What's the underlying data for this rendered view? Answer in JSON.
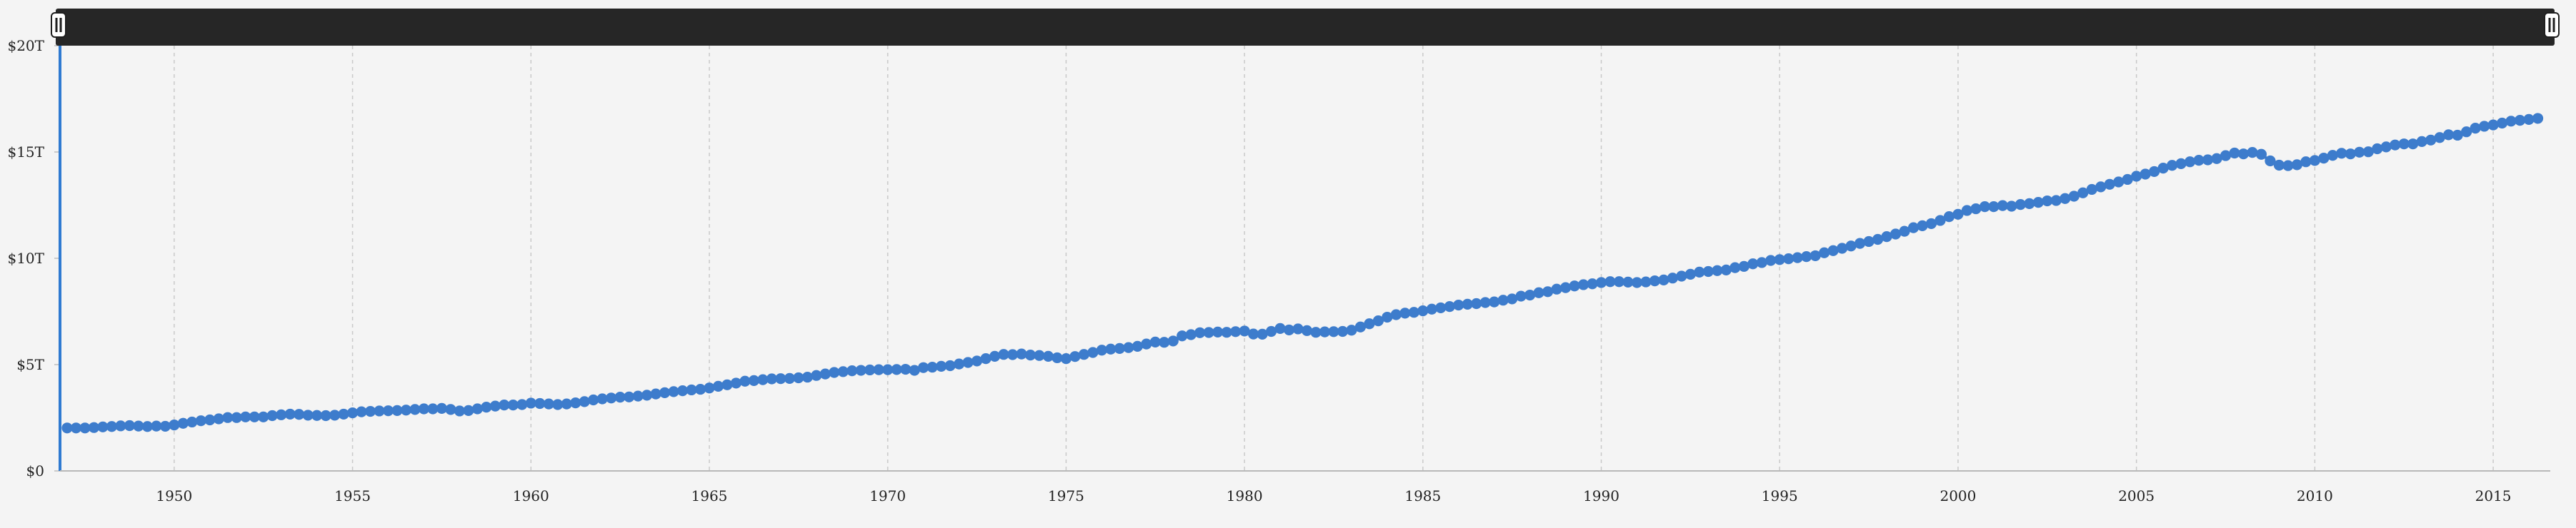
{
  "chart_data": {
    "type": "scatter",
    "title": "",
    "xlabel": "",
    "ylabel": "",
    "xlim": [
      1946.8,
      2016.6
    ],
    "ylim": [
      0,
      20
    ],
    "grid": true,
    "y_ticks": [
      {
        "value": 0,
        "label": "$0"
      },
      {
        "value": 5,
        "label": "$5T"
      },
      {
        "value": 10,
        "label": "$10T"
      },
      {
        "value": 15,
        "label": "$15T"
      },
      {
        "value": 20,
        "label": "$20T"
      }
    ],
    "x_ticks": [
      {
        "value": 1950,
        "label": "1950"
      },
      {
        "value": 1955,
        "label": "1955"
      },
      {
        "value": 1960,
        "label": "1960"
      },
      {
        "value": 1965,
        "label": "1965"
      },
      {
        "value": 1970,
        "label": "1970"
      },
      {
        "value": 1975,
        "label": "1975"
      },
      {
        "value": 1980,
        "label": "1980"
      },
      {
        "value": 1985,
        "label": "1985"
      },
      {
        "value": 1990,
        "label": "1990"
      },
      {
        "value": 1995,
        "label": "1995"
      },
      {
        "value": 2000,
        "label": "2000"
      },
      {
        "value": 2005,
        "label": "2005"
      },
      {
        "value": 2010,
        "label": "2010"
      },
      {
        "value": 2015,
        "label": "2015"
      }
    ],
    "brush": {
      "range": [
        1946.8,
        2016.6
      ]
    },
    "series": [
      {
        "color": "#3d7ccc",
        "x": [
          1947.0,
          1947.25,
          1947.5,
          1947.75,
          1948.0,
          1948.25,
          1948.5,
          1948.75,
          1949.0,
          1949.25,
          1949.5,
          1949.75,
          1950.0,
          1950.25,
          1950.5,
          1950.75,
          1951.0,
          1951.25,
          1951.5,
          1951.75,
          1952.0,
          1952.25,
          1952.5,
          1952.75,
          1953.0,
          1953.25,
          1953.5,
          1953.75,
          1954.0,
          1954.25,
          1954.5,
          1954.75,
          1955.0,
          1955.25,
          1955.5,
          1955.75,
          1956.0,
          1956.25,
          1956.5,
          1956.75,
          1957.0,
          1957.25,
          1957.5,
          1957.75,
          1958.0,
          1958.25,
          1958.5,
          1958.75,
          1959.0,
          1959.25,
          1959.5,
          1959.75,
          1960.0,
          1960.25,
          1960.5,
          1960.75,
          1961.0,
          1961.25,
          1961.5,
          1961.75,
          1962.0,
          1962.25,
          1962.5,
          1962.75,
          1963.0,
          1963.25,
          1963.5,
          1963.75,
          1964.0,
          1964.25,
          1964.5,
          1964.75,
          1965.0,
          1965.25,
          1965.5,
          1965.75,
          1966.0,
          1966.25,
          1966.5,
          1966.75,
          1967.0,
          1967.25,
          1967.5,
          1967.75,
          1968.0,
          1968.25,
          1968.5,
          1968.75,
          1969.0,
          1969.25,
          1969.5,
          1969.75,
          1970.0,
          1970.25,
          1970.5,
          1970.75,
          1971.0,
          1971.25,
          1971.5,
          1971.75,
          1972.0,
          1972.25,
          1972.5,
          1972.75,
          1973.0,
          1973.25,
          1973.5,
          1973.75,
          1974.0,
          1974.25,
          1974.5,
          1974.75,
          1975.0,
          1975.25,
          1975.5,
          1975.75,
          1976.0,
          1976.25,
          1976.5,
          1976.75,
          1977.0,
          1977.25,
          1977.5,
          1977.75,
          1978.0,
          1978.25,
          1978.5,
          1978.75,
          1979.0,
          1979.25,
          1979.5,
          1979.75,
          1980.0,
          1980.25,
          1980.5,
          1980.75,
          1981.0,
          1981.25,
          1981.5,
          1981.75,
          1982.0,
          1982.25,
          1982.5,
          1982.75,
          1983.0,
          1983.25,
          1983.5,
          1983.75,
          1984.0,
          1984.25,
          1984.5,
          1984.75,
          1985.0,
          1985.25,
          1985.5,
          1985.75,
          1986.0,
          1986.25,
          1986.5,
          1986.75,
          1987.0,
          1987.25,
          1987.5,
          1987.75,
          1988.0,
          1988.25,
          1988.5,
          1988.75,
          1989.0,
          1989.25,
          1989.5,
          1989.75,
          1990.0,
          1990.25,
          1990.5,
          1990.75,
          1991.0,
          1991.25,
          1991.5,
          1991.75,
          1992.0,
          1992.25,
          1992.5,
          1992.75,
          1993.0,
          1993.25,
          1993.5,
          1993.75,
          1994.0,
          1994.25,
          1994.5,
          1994.75,
          1995.0,
          1995.25,
          1995.5,
          1995.75,
          1996.0,
          1996.25,
          1996.5,
          1996.75,
          1997.0,
          1997.25,
          1997.5,
          1997.75,
          1998.0,
          1998.25,
          1998.5,
          1998.75,
          1999.0,
          1999.25,
          1999.5,
          1999.75,
          2000.0,
          2000.25,
          2000.5,
          2000.75,
          2001.0,
          2001.25,
          2001.5,
          2001.75,
          2002.0,
          2002.25,
          2002.5,
          2002.75,
          2003.0,
          2003.25,
          2003.5,
          2003.75,
          2004.0,
          2004.25,
          2004.5,
          2004.75,
          2005.0,
          2005.25,
          2005.5,
          2005.75,
          2006.0,
          2006.25,
          2006.5,
          2006.75,
          2007.0,
          2007.25,
          2007.5,
          2007.75,
          2008.0,
          2008.25,
          2008.5,
          2008.75,
          2009.0,
          2009.25,
          2009.5,
          2009.75,
          2010.0,
          2010.25,
          2010.5,
          2010.75,
          2011.0,
          2011.25,
          2011.5,
          2011.75,
          2012.0,
          2012.25,
          2012.5,
          2012.75,
          2013.0,
          2013.25,
          2013.5,
          2013.75,
          2014.0,
          2014.25,
          2014.5,
          2014.75,
          2015.0,
          2015.25,
          2015.5,
          2015.75,
          2016.0,
          2016.25
        ],
        "y": [
          2.02,
          2.02,
          2.02,
          2.04,
          2.07,
          2.09,
          2.12,
          2.13,
          2.11,
          2.09,
          2.11,
          2.1,
          2.16,
          2.24,
          2.3,
          2.36,
          2.4,
          2.45,
          2.51,
          2.51,
          2.54,
          2.54,
          2.54,
          2.6,
          2.64,
          2.67,
          2.66,
          2.62,
          2.61,
          2.6,
          2.62,
          2.67,
          2.73,
          2.78,
          2.8,
          2.82,
          2.83,
          2.84,
          2.86,
          2.89,
          2.92,
          2.92,
          2.94,
          2.89,
          2.82,
          2.84,
          2.92,
          3.0,
          3.05,
          3.1,
          3.1,
          3.12,
          3.19,
          3.17,
          3.15,
          3.12,
          3.15,
          3.2,
          3.26,
          3.34,
          3.39,
          3.43,
          3.47,
          3.48,
          3.52,
          3.56,
          3.62,
          3.68,
          3.73,
          3.77,
          3.81,
          3.84,
          3.9,
          3.98,
          4.05,
          4.13,
          4.22,
          4.25,
          4.29,
          4.33,
          4.34,
          4.35,
          4.38,
          4.41,
          4.49,
          4.56,
          4.63,
          4.67,
          4.71,
          4.73,
          4.75,
          4.76,
          4.76,
          4.77,
          4.78,
          4.73,
          4.86,
          4.88,
          4.92,
          4.95,
          5.03,
          5.1,
          5.17,
          5.28,
          5.39,
          5.48,
          5.47,
          5.5,
          5.45,
          5.43,
          5.39,
          5.32,
          5.28,
          5.38,
          5.48,
          5.57,
          5.68,
          5.73,
          5.76,
          5.8,
          5.86,
          5.97,
          6.06,
          6.05,
          6.11,
          6.35,
          6.41,
          6.5,
          6.51,
          6.53,
          6.52,
          6.55,
          6.58,
          6.44,
          6.43,
          6.56,
          6.7,
          6.63,
          6.68,
          6.6,
          6.52,
          6.54,
          6.55,
          6.56,
          6.62,
          6.77,
          6.92,
          7.06,
          7.23,
          7.35,
          7.42,
          7.46,
          7.53,
          7.61,
          7.67,
          7.73,
          7.8,
          7.84,
          7.87,
          7.92,
          7.95,
          8.03,
          8.09,
          8.22,
          8.27,
          8.38,
          8.43,
          8.55,
          8.62,
          8.7,
          8.76,
          8.8,
          8.86,
          8.9,
          8.9,
          8.88,
          8.86,
          8.89,
          8.94,
          8.98,
          9.07,
          9.16,
          9.25,
          9.35,
          9.38,
          9.42,
          9.45,
          9.56,
          9.62,
          9.74,
          9.8,
          9.9,
          9.94,
          9.98,
          10.03,
          10.08,
          10.12,
          10.26,
          10.36,
          10.47,
          10.58,
          10.7,
          10.79,
          10.89,
          11.02,
          11.14,
          11.27,
          11.44,
          11.53,
          11.63,
          11.78,
          11.96,
          12.07,
          12.25,
          12.33,
          12.43,
          12.43,
          12.48,
          12.45,
          12.53,
          12.57,
          12.63,
          12.7,
          12.72,
          12.81,
          12.92,
          13.08,
          13.24,
          13.36,
          13.48,
          13.59,
          13.71,
          13.86,
          13.96,
          14.08,
          14.24,
          14.37,
          14.45,
          14.54,
          14.61,
          14.63,
          14.69,
          14.83,
          14.95,
          14.91,
          14.98,
          14.89,
          14.58,
          14.38,
          14.36,
          14.4,
          14.54,
          14.6,
          14.71,
          14.84,
          14.94,
          14.91,
          14.99,
          15.01,
          15.15,
          15.24,
          15.33,
          15.38,
          15.38,
          15.49,
          15.56,
          15.68,
          15.81,
          15.79,
          15.95,
          16.12,
          16.21,
          16.27,
          16.36,
          16.45,
          16.49,
          16.53,
          16.58
        ]
      }
    ]
  }
}
